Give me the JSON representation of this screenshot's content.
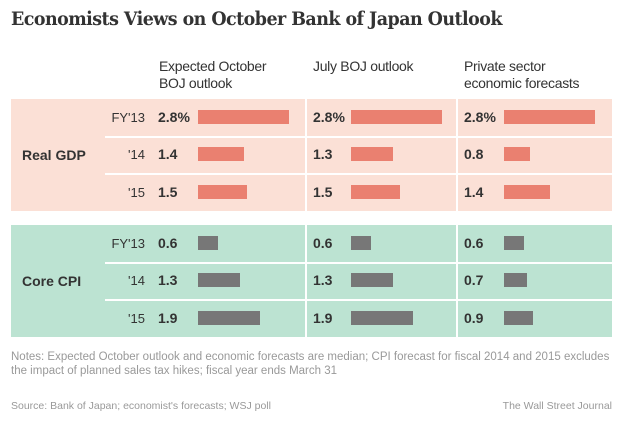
{
  "title": "Economists Views on October Bank of Japan Outlook",
  "colors": {
    "gdp_bg": "#fbe0d6",
    "gdp_bar": "#ea8070",
    "cpi_bg": "#bce3d2",
    "cpi_bar": "#777777"
  },
  "chart_data": {
    "type": "bar",
    "title": "Economists Views on October Bank of Japan Outlook",
    "columns": [
      "Expected October BOJ outlook",
      "July BOJ outlook",
      "Private sector economic forecasts"
    ],
    "groups": [
      {
        "name": "Real GDP",
        "years": [
          "FY'13",
          "'14",
          "'15"
        ],
        "unit": "%",
        "values": [
          [
            2.8,
            1.4,
            1.5
          ],
          [
            2.8,
            1.3,
            1.5
          ],
          [
            2.8,
            0.8,
            1.4
          ]
        ],
        "labels": [
          [
            "2.8%",
            "1.4",
            "1.5"
          ],
          [
            "2.8%",
            "1.3",
            "1.5"
          ],
          [
            "2.8%",
            "0.8",
            "1.4"
          ]
        ]
      },
      {
        "name": "Core CPI",
        "years": [
          "FY'13",
          "'14",
          "'15"
        ],
        "unit": "",
        "values": [
          [
            0.6,
            1.3,
            1.9
          ],
          [
            0.6,
            1.3,
            1.9
          ],
          [
            0.6,
            0.7,
            0.9
          ]
        ],
        "labels": [
          [
            "0.6",
            "1.3",
            "1.9"
          ],
          [
            "0.6",
            "1.3",
            "1.9"
          ],
          [
            "0.6",
            "0.7",
            "0.9"
          ]
        ]
      }
    ],
    "xlim": [
      0,
      2.8
    ]
  },
  "headers": {
    "col0": [
      "Expected October",
      "BOJ outlook"
    ],
    "col1": [
      "July BOJ outlook",
      ""
    ],
    "col2": [
      "Private sector",
      "economic forecasts"
    ]
  },
  "notes": "Notes: Expected October outlook and economic forecasts are median; CPI forecast for fiscal 2014 and 2015 excludes the impact of planned sales tax hikes; fiscal year ends March 31",
  "source": "Source: Bank of Japan; economist's forecasts; WSJ poll",
  "credit": "The Wall Street Journal"
}
